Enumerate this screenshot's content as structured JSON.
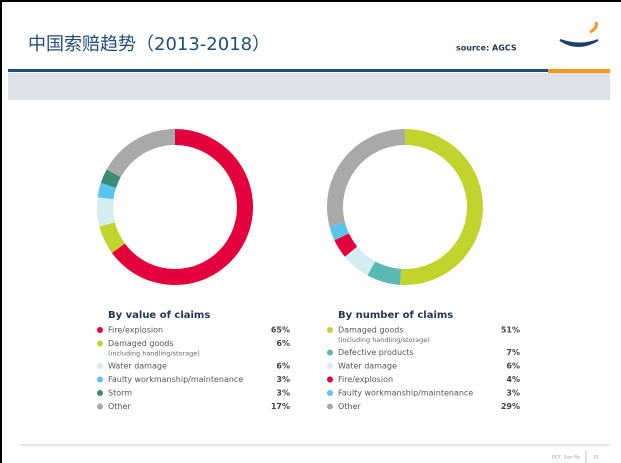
{
  "header": {
    "title": "中国索赔趋势（2013-2018）",
    "source": "source: AGCS"
  },
  "footer": {
    "text": "GCF, Gen Re",
    "page": "31"
  },
  "chart_data": [
    {
      "type": "pie",
      "title": "By value of claims",
      "categories": [
        "Fire/explosion",
        "Damaged goods",
        "Water damage",
        "Faulty workmanship/maintenance",
        "Storm",
        "Other"
      ],
      "category_notes": [
        null,
        "(including handling/storage)",
        null,
        null,
        null,
        null
      ],
      "values": [
        65,
        6,
        6,
        3,
        3,
        17
      ],
      "value_labels": [
        "65%",
        "6%",
        "6%",
        "3%",
        "3%",
        "17%"
      ],
      "colors": [
        "#e4003a",
        "#c2d32e",
        "#d4edf2",
        "#5cc3ee",
        "#3a8c76",
        "#a9a9a9"
      ]
    },
    {
      "type": "pie",
      "title": "By number of claims",
      "categories": [
        "Damaged goods",
        "Defective products",
        "Water damage",
        "Fire/explosion",
        "Faulty workmanship/maintenance",
        "Other"
      ],
      "category_notes": [
        "(including handling/storage)",
        null,
        null,
        null,
        null,
        null
      ],
      "values": [
        51,
        7,
        6,
        4,
        3,
        29
      ],
      "value_labels": [
        "51%",
        "7%",
        "6%",
        "4%",
        "3%",
        "29%"
      ],
      "colors": [
        "#c2d32e",
        "#5bb9b3",
        "#d4edf2",
        "#e4003a",
        "#5cc3ee",
        "#a9a9a9"
      ]
    }
  ]
}
